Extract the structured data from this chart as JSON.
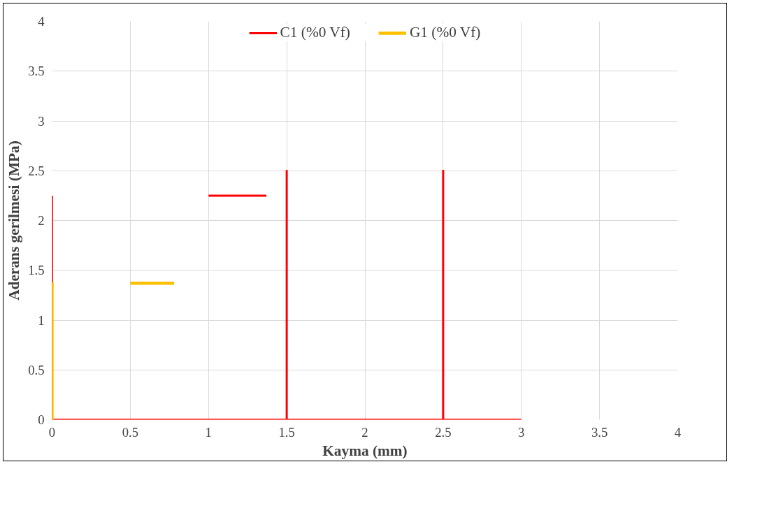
{
  "chart_data": {
    "type": "line",
    "xlabel": "Kayma (mm)",
    "ylabel": "Aderans gerilmesi (MPa)",
    "xlim": [
      0,
      4
    ],
    "ylim": [
      0,
      4
    ],
    "xticks": [
      0,
      0.5,
      1,
      1.5,
      2,
      2.5,
      3,
      3.5,
      4
    ],
    "yticks": [
      0,
      0.5,
      1,
      1.5,
      2,
      2.5,
      3,
      3.5,
      4
    ],
    "grid": true,
    "legend": "top",
    "marker": "none",
    "line_style": "solid",
    "series": [
      {
        "name": "C1 (%0 Vf)",
        "color": "#ff0000",
        "x": [
          0,
          0,
          1.5,
          1.5,
          1.5,
          2.5,
          2.5,
          2.5,
          3,
          null,
          1,
          1.37
        ],
        "values": [
          2.25,
          0,
          0,
          2.5,
          0,
          0,
          2.5,
          0,
          0,
          null,
          2.25,
          2.25
        ]
      },
      {
        "name": "G1 (%0 Vf)",
        "color": "#ffc000",
        "x": [
          0,
          0,
          null,
          0.5,
          0.78
        ],
        "values": [
          0,
          1.38,
          null,
          1.37,
          1.37
        ]
      }
    ]
  }
}
